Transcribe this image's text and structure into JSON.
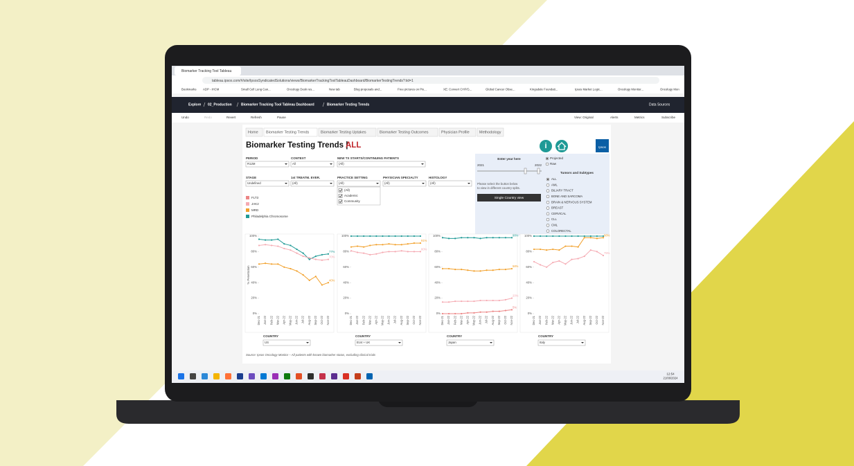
{
  "browser": {
    "tab_title": "Biomarker Tracking Tool Tableau",
    "url": "tableau.ipsos.com/#/site/IpsosSyndicatedSolutions/views/BiomarkerTrackingToolTableauDashboard/BiomarkerTestingTrends?:iid=1",
    "bookmarks": [
      "Bookmarks",
      "ADP - iHCM",
      "Small Cell Lung Can...",
      "Oncology Desk res...",
      "New tab",
      "Blog proposals and...",
      "Free pictures on Pix...",
      "XE: Convert CHF/G...",
      "Global Cancer Obse...",
      "Kingsdale Foundati...",
      "Ipsos Market Logic...",
      "Oncology Monitor...",
      "Oncology Mon"
    ]
  },
  "tableau": {
    "breadcrumbs": [
      "Explore",
      "02_Production",
      "Biomarker Tracking Tool Tableau Dashboard",
      "Biomarker Testing Trends"
    ],
    "data_sources": "Data Sources",
    "toolbar_left": [
      "Undo",
      "Redo",
      "Revert",
      "Refresh",
      "Pause"
    ],
    "toolbar_right": [
      "View: Original",
      "Alerts",
      "Metrics",
      "Subscribe"
    ]
  },
  "dashboard": {
    "tabs": [
      "Home",
      "Biomarker Testing Trends",
      "Biomarker Testing Uptakes",
      "Biomarker Testing Outcomes",
      "Physician Profile",
      "Methodology"
    ],
    "title": "Biomarker Testing Trends |",
    "title_highlight": "ALL",
    "logo": "Ipsos",
    "filters": [
      {
        "label": "PERIOD",
        "value": "R12M"
      },
      {
        "label": "CONTEXT",
        "value": "All"
      },
      {
        "label": "NEW TX STARTS/CONTINUING PATIENTS",
        "value": "(All)"
      },
      {
        "label": "STAGE",
        "value": "Undefined"
      },
      {
        "label": "1st TREATM. EVER.",
        "value": "(All)"
      },
      {
        "label": "PRACTICE SETTING",
        "value": "(All)"
      },
      {
        "label": "PHYSICIAN SPECIALTY",
        "value": "(All)"
      },
      {
        "label": "HISTOLOGY",
        "value": "(All)"
      }
    ],
    "practice_options": [
      "(All)",
      "Academic",
      "Community"
    ],
    "legend": [
      {
        "name": "FLT3",
        "color": "#ec8585"
      },
      {
        "name": "JAK2",
        "color": "#f5aab2"
      },
      {
        "name": "MRD",
        "color": "#f2a02a"
      },
      {
        "name": "Philadelphia Chromosome",
        "color": "#1f9a96"
      }
    ],
    "year_slider": {
      "label": "Enter year here",
      "start": "2021",
      "end": "2022"
    },
    "country_note": [
      "Please select the button below",
      "to view in different country splits."
    ],
    "country_button": "Single Country view",
    "mode_options": [
      "Projected",
      "Raw"
    ],
    "tumors_title": "Tumors and Subtypes",
    "tumors": [
      "ALL",
      "AML",
      "BILIARY TRACT",
      "BONE AND SARCOMA",
      "BRAIN & NERVOUS SYSTEM",
      "BREAST",
      "CERVICAL",
      "CLL",
      "CML",
      "COLORECTAL"
    ],
    "trend_axes": {
      "categories": [
        "Dec-21",
        "Jan-22",
        "Feb-22",
        "Mar-22",
        "Apr-22",
        "May-22",
        "Jun-22",
        "Jul-22",
        "Aug-22",
        "Sep-22",
        "Oct-22",
        "Nov-22"
      ],
      "ylim": [
        0,
        100
      ],
      "yticks": [
        {
          "value": 0,
          "label": "0%"
        },
        {
          "value": 20,
          "label": "20%"
        },
        {
          "value": 40,
          "label": "40%"
        },
        {
          "value": 60,
          "label": "60%"
        },
        {
          "value": 80,
          "label": "80%"
        },
        {
          "value": 100,
          "label": "100%"
        }
      ],
      "y_label": "% Penetration"
    },
    "country_label": "COUNTRY",
    "charts": [
      {
        "country": "US",
        "series": [
          {
            "color": "#1f9a96",
            "values": [
              96,
              95,
              95,
              96,
              90,
              88,
              83,
              78,
              70,
              74,
              76,
              77
            ],
            "value_labels": [
              null,
              null,
              null,
              null,
              null,
              null,
              null,
              null,
              null,
              null,
              null,
              "77%"
            ]
          },
          {
            "color": "#f5aab2",
            "values": [
              88,
              89,
              88,
              87,
              84,
              82,
              78,
              74,
              72,
              70,
              69,
              70
            ],
            "value_labels": [
              null,
              null,
              null,
              null,
              null,
              null,
              null,
              null,
              null,
              null,
              null,
              "70%"
            ]
          },
          {
            "color": "#f2a02a",
            "values": [
              64,
              65,
              64,
              64,
              60,
              58,
              55,
              50,
              43,
              48,
              37,
              40
            ],
            "value_labels": [
              null,
              null,
              null,
              null,
              null,
              null,
              null,
              null,
              null,
              null,
              null,
              "40%"
            ]
          }
        ]
      },
      {
        "country": "EU4 + UK",
        "series": [
          {
            "color": "#1f9a96",
            "values": [
              100,
              100,
              100,
              100,
              100,
              100,
              100,
              100,
              100,
              100,
              100,
              100
            ],
            "value_labels": [
              null,
              null,
              null,
              null,
              null,
              null,
              null,
              null,
              null,
              null,
              null,
              null
            ]
          },
          {
            "color": "#f2a02a",
            "values": [
              86,
              87,
              86,
              88,
              89,
              89,
              90,
              89,
              89,
              90,
              91,
              91
            ],
            "value_labels": [
              null,
              null,
              null,
              null,
              null,
              null,
              null,
              null,
              null,
              null,
              null,
              "91%"
            ]
          },
          {
            "color": "#f5aab2",
            "values": [
              81,
              79,
              78,
              76,
              77,
              79,
              80,
              80,
              81,
              80,
              80,
              80
            ],
            "value_labels": [
              null,
              null,
              null,
              null,
              null,
              null,
              null,
              null,
              null,
              null,
              null,
              "80%"
            ]
          }
        ]
      },
      {
        "country": "Japan",
        "series": [
          {
            "color": "#1f9a96",
            "values": [
              98,
              97,
              97,
              98,
              98,
              98,
              97,
              98,
              98,
              98,
              98,
              98
            ],
            "value_labels": [
              null,
              null,
              null,
              null,
              null,
              null,
              null,
              null,
              null,
              null,
              null,
              "98%"
            ]
          },
          {
            "color": "#f2a02a",
            "values": [
              58,
              58,
              57,
              57,
              56,
              55,
              55,
              56,
              56,
              57,
              57,
              58
            ],
            "value_labels": [
              null,
              null,
              null,
              null,
              null,
              null,
              null,
              null,
              null,
              null,
              null,
              "58%"
            ]
          },
          {
            "color": "#f5aab2",
            "values": [
              15,
              15,
              16,
              16,
              16,
              16,
              17,
              17,
              17,
              17,
              18,
              20
            ],
            "value_labels": [
              null,
              null,
              null,
              null,
              null,
              null,
              null,
              null,
              null,
              null,
              null,
              "20%"
            ]
          },
          {
            "color": "#ec8585",
            "values": [
              0,
              0,
              0,
              0,
              1,
              1,
              2,
              2,
              3,
              3,
              4,
              5
            ],
            "value_labels": [
              null,
              null,
              null,
              null,
              null,
              null,
              null,
              null,
              null,
              null,
              null,
              "5%"
            ]
          }
        ]
      },
      {
        "country": "Italy",
        "series": [
          {
            "color": "#1f9a96",
            "values": [
              100,
              100,
              100,
              100,
              100,
              100,
              100,
              100,
              100,
              100,
              100,
              100
            ],
            "value_labels": [
              null,
              null,
              null,
              null,
              null,
              null,
              null,
              null,
              null,
              null,
              null,
              null
            ]
          },
          {
            "color": "#f2a02a",
            "values": [
              83,
              83,
              82,
              83,
              82,
              87,
              87,
              86,
              98,
              98,
              97,
              98
            ],
            "value_labels": [
              null,
              null,
              null,
              null,
              null,
              null,
              null,
              null,
              null,
              null,
              null,
              "98%"
            ]
          },
          {
            "color": "#f5aab2",
            "values": [
              67,
              63,
              60,
              66,
              68,
              64,
              70,
              71,
              74,
              82,
              80,
              75
            ],
            "value_labels": [
              null,
              null,
              null,
              null,
              null,
              null,
              null,
              null,
              null,
              null,
              null,
              "75%"
            ]
          }
        ]
      }
    ],
    "source": "Source: Ipsos Oncology Monitor – All patients with known biomarker status, excluding clinical trials"
  },
  "taskbar": {
    "time": "12:54",
    "date": "21/06/2024"
  }
}
